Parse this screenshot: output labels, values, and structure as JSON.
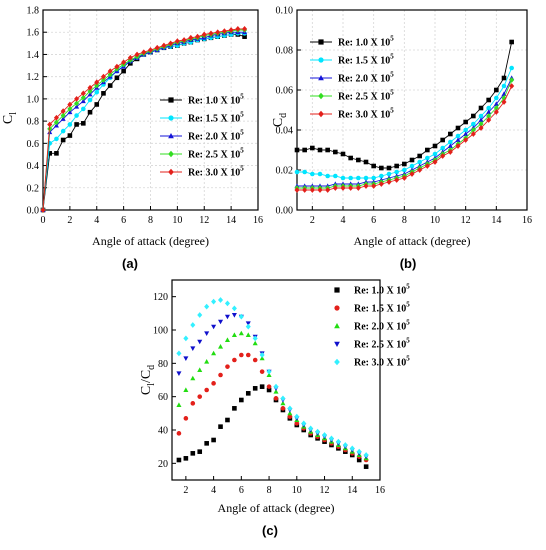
{
  "chart_data": [
    {
      "id": "a",
      "panel_label": "(a)",
      "type": "line",
      "xlabel": "Angle of attack (degree)",
      "ylabel_main": "C",
      "ylabel_sub": "l",
      "xlim": [
        0,
        16
      ],
      "ylim": [
        0,
        1.8
      ],
      "xticks": [
        0,
        2,
        4,
        6,
        8,
        10,
        12,
        14,
        16
      ],
      "yticks": [
        0.0,
        0.2,
        0.4,
        0.6,
        0.8,
        1.0,
        1.2,
        1.4,
        1.6,
        1.8
      ],
      "grid": true,
      "legend_position": "center-right",
      "x": [
        0,
        0.5,
        1,
        1.5,
        2,
        2.5,
        3,
        3.5,
        4,
        4.5,
        5,
        5.5,
        6,
        6.5,
        7,
        7.5,
        8,
        8.5,
        9,
        9.5,
        10,
        10.5,
        11,
        11.5,
        12,
        12.5,
        13,
        13.5,
        14,
        14.5,
        15
      ],
      "series": [
        {
          "name": "Re: 1.0 X 10",
          "exp": "5",
          "color": "#000000",
          "marker": "square",
          "values": [
            0.0,
            0.51,
            0.51,
            0.63,
            0.67,
            0.77,
            0.78,
            0.88,
            0.95,
            1.05,
            1.12,
            1.19,
            1.25,
            1.32,
            1.36,
            1.4,
            1.42,
            1.44,
            1.46,
            1.47,
            1.48,
            1.5,
            1.51,
            1.53,
            1.54,
            1.55,
            1.56,
            1.57,
            1.58,
            1.58,
            1.56
          ]
        },
        {
          "name": "Re: 1.5 X 10",
          "exp": "5",
          "color": "#00e5ff",
          "marker": "circle",
          "values": [
            0.0,
            0.6,
            0.64,
            0.71,
            0.77,
            0.85,
            0.91,
            0.99,
            1.06,
            1.13,
            1.19,
            1.25,
            1.3,
            1.34,
            1.37,
            1.4,
            1.42,
            1.44,
            1.46,
            1.47,
            1.48,
            1.5,
            1.51,
            1.53,
            1.54,
            1.55,
            1.56,
            1.57,
            1.58,
            1.59,
            1.59
          ]
        },
        {
          "name": "Re: 2.0 X 10",
          "exp": "5",
          "color": "#1515d8",
          "marker": "triangle-up",
          "values": [
            0.0,
            0.7,
            0.76,
            0.82,
            0.88,
            0.93,
            0.98,
            1.04,
            1.1,
            1.15,
            1.2,
            1.25,
            1.29,
            1.34,
            1.37,
            1.4,
            1.42,
            1.44,
            1.46,
            1.48,
            1.5,
            1.51,
            1.53,
            1.54,
            1.55,
            1.57,
            1.58,
            1.59,
            1.6,
            1.6,
            1.6
          ]
        },
        {
          "name": "Re: 2.5 X 10",
          "exp": "5",
          "color": "#33dd22",
          "marker": "diamond",
          "values": [
            0.0,
            0.73,
            0.79,
            0.85,
            0.91,
            0.96,
            1.01,
            1.07,
            1.12,
            1.17,
            1.22,
            1.27,
            1.31,
            1.35,
            1.38,
            1.41,
            1.43,
            1.45,
            1.47,
            1.49,
            1.51,
            1.52,
            1.54,
            1.55,
            1.57,
            1.58,
            1.59,
            1.6,
            1.61,
            1.62,
            1.62
          ]
        },
        {
          "name": "Re: 3.0 X 10",
          "exp": "5",
          "color": "#e3201b",
          "marker": "diamond",
          "values": [
            0.0,
            0.77,
            0.83,
            0.89,
            0.95,
            1.0,
            1.05,
            1.1,
            1.15,
            1.2,
            1.25,
            1.29,
            1.33,
            1.37,
            1.4,
            1.42,
            1.44,
            1.46,
            1.48,
            1.5,
            1.52,
            1.53,
            1.55,
            1.56,
            1.58,
            1.59,
            1.6,
            1.61,
            1.62,
            1.63,
            1.63
          ]
        }
      ]
    },
    {
      "id": "b",
      "panel_label": "(b)",
      "type": "line",
      "xlabel": "Angle of attack (degree)",
      "ylabel_main": "C",
      "ylabel_sub": "d",
      "xlim": [
        1,
        16
      ],
      "ylim": [
        0,
        0.1
      ],
      "xticks": [
        2,
        4,
        6,
        8,
        10,
        12,
        14,
        16
      ],
      "yticks": [
        0.0,
        0.02,
        0.04,
        0.06,
        0.08,
        0.1
      ],
      "grid": true,
      "legend_position": "top-left",
      "x": [
        1,
        1.5,
        2,
        2.5,
        3,
        3.5,
        4,
        4.5,
        5,
        5.5,
        6,
        6.5,
        7,
        7.5,
        8,
        8.5,
        9,
        9.5,
        10,
        10.5,
        11,
        11.5,
        12,
        12.5,
        13,
        13.5,
        14,
        14.5,
        15
      ],
      "series": [
        {
          "name": "Re: 1.0 X 10",
          "exp": "5",
          "color": "#000000",
          "marker": "square",
          "values": [
            0.03,
            0.03,
            0.031,
            0.03,
            0.03,
            0.029,
            0.028,
            0.026,
            0.025,
            0.024,
            0.022,
            0.021,
            0.021,
            0.022,
            0.023,
            0.025,
            0.027,
            0.03,
            0.032,
            0.035,
            0.038,
            0.041,
            0.044,
            0.047,
            0.051,
            0.055,
            0.06,
            0.066,
            0.084
          ]
        },
        {
          "name": "Re: 1.5 X 10",
          "exp": "5",
          "color": "#00e5ff",
          "marker": "circle",
          "values": [
            0.019,
            0.019,
            0.018,
            0.018,
            0.017,
            0.017,
            0.016,
            0.016,
            0.016,
            0.016,
            0.016,
            0.017,
            0.018,
            0.019,
            0.02,
            0.022,
            0.024,
            0.026,
            0.028,
            0.031,
            0.034,
            0.037,
            0.04,
            0.043,
            0.047,
            0.051,
            0.056,
            0.062,
            0.071
          ]
        },
        {
          "name": "Re: 2.0 X 10",
          "exp": "5",
          "color": "#1515d8",
          "marker": "triangle-up",
          "values": [
            0.012,
            0.012,
            0.012,
            0.012,
            0.012,
            0.013,
            0.013,
            0.013,
            0.013,
            0.014,
            0.014,
            0.015,
            0.016,
            0.017,
            0.018,
            0.02,
            0.022,
            0.024,
            0.026,
            0.029,
            0.032,
            0.035,
            0.038,
            0.041,
            0.045,
            0.049,
            0.053,
            0.058,
            0.066
          ]
        },
        {
          "name": "Re: 2.5 X 10",
          "exp": "5",
          "color": "#33dd22",
          "marker": "diamond",
          "values": [
            0.011,
            0.011,
            0.011,
            0.011,
            0.011,
            0.012,
            0.012,
            0.012,
            0.012,
            0.013,
            0.013,
            0.014,
            0.015,
            0.016,
            0.017,
            0.019,
            0.021,
            0.023,
            0.025,
            0.028,
            0.03,
            0.033,
            0.036,
            0.04,
            0.043,
            0.047,
            0.051,
            0.056,
            0.065
          ]
        },
        {
          "name": "Re: 3.0 X 10",
          "exp": "5",
          "color": "#e3201b",
          "marker": "diamond",
          "values": [
            0.01,
            0.01,
            0.01,
            0.01,
            0.01,
            0.011,
            0.011,
            0.011,
            0.011,
            0.012,
            0.012,
            0.013,
            0.014,
            0.015,
            0.016,
            0.018,
            0.02,
            0.022,
            0.024,
            0.027,
            0.029,
            0.032,
            0.035,
            0.038,
            0.041,
            0.045,
            0.049,
            0.054,
            0.062
          ]
        }
      ]
    },
    {
      "id": "c",
      "panel_label": "(c)",
      "type": "scatter",
      "xlabel": "Angle of attack (degree)",
      "ylabel_main": "C",
      "ylabel_sub": "l",
      "ylabel_mid": "/C",
      "ylabel_sub2": "d",
      "xlim": [
        1,
        16
      ],
      "ylim": [
        10,
        130
      ],
      "xticks": [
        2,
        4,
        6,
        8,
        10,
        12,
        14,
        16
      ],
      "yticks": [
        20,
        40,
        60,
        80,
        100,
        120
      ],
      "grid": false,
      "legend_position": "top-right",
      "x": [
        1.5,
        2,
        2.5,
        3,
        3.5,
        4,
        4.5,
        5,
        5.5,
        6,
        6.5,
        7,
        7.5,
        8,
        8.5,
        9,
        9.5,
        10,
        10.5,
        11,
        11.5,
        12,
        12.5,
        13,
        13.5,
        14,
        14.5,
        15
      ],
      "series": [
        {
          "name": "Re: 1.0 X 10",
          "exp": "5",
          "color": "#000000",
          "marker": "square",
          "values": [
            22,
            23,
            26,
            27,
            32,
            34,
            42,
            46,
            53,
            58,
            62,
            65,
            66,
            64,
            58,
            52,
            47,
            43,
            40,
            37,
            35,
            33,
            31,
            29,
            27,
            25,
            22,
            18
          ]
        },
        {
          "name": "Re: 1.5 X 10",
          "exp": "5",
          "color": "#e3201b",
          "marker": "circle",
          "values": [
            38,
            47,
            56,
            60,
            64,
            68,
            73,
            78,
            82,
            85,
            85,
            82,
            75,
            66,
            59,
            53,
            48,
            44,
            41,
            38,
            36,
            34,
            32,
            30,
            28,
            26,
            24,
            22
          ]
        },
        {
          "name": "Re: 2.0 X 10",
          "exp": "5",
          "color": "#22dd11",
          "marker": "triangle-up",
          "values": [
            55,
            64,
            71,
            76,
            81,
            86,
            90,
            94,
            97,
            98,
            97,
            92,
            83,
            73,
            63,
            56,
            50,
            46,
            42,
            39,
            37,
            35,
            33,
            31,
            29,
            27,
            25,
            23
          ]
        },
        {
          "name": "Re: 2.5 X 10",
          "exp": "5",
          "color": "#1010cc",
          "marker": "triangle-down",
          "values": [
            74,
            83,
            89,
            93,
            98,
            102,
            105,
            108,
            109,
            108,
            104,
            96,
            86,
            75,
            65,
            58,
            52,
            47,
            43,
            40,
            38,
            36,
            34,
            32,
            30,
            28,
            26,
            24
          ]
        },
        {
          "name": "Re: 3.0 X 10",
          "exp": "5",
          "color": "#33f0ff",
          "marker": "diamond",
          "values": [
            86,
            95,
            103,
            109,
            114,
            117,
            118,
            116,
            113,
            108,
            102,
            95,
            85,
            75,
            66,
            59,
            53,
            48,
            44,
            41,
            39,
            37,
            35,
            33,
            31,
            29,
            27,
            25
          ]
        }
      ]
    }
  ]
}
